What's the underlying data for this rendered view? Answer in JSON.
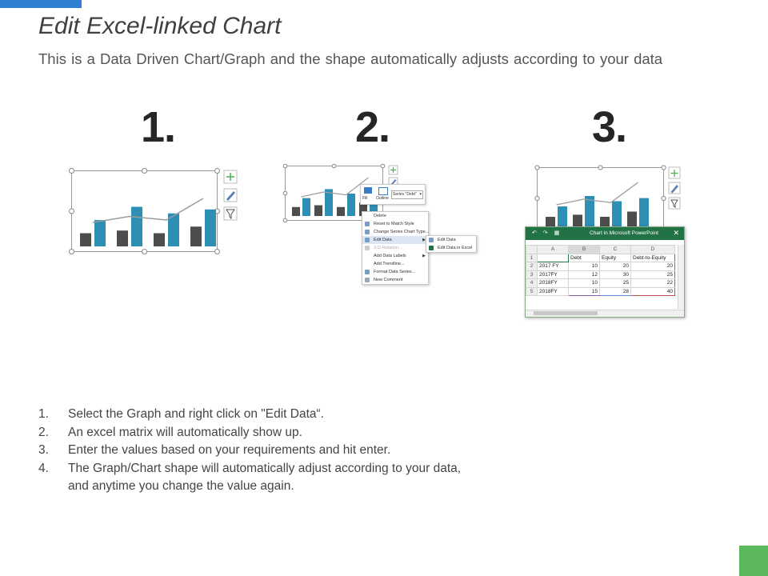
{
  "header": {
    "title": "Edit Excel-linked Chart",
    "subtitle": "This is a Data Driven Chart/Graph and the shape automatically adjusts according to your data"
  },
  "steps": [
    {
      "number": "1."
    },
    {
      "number": "2."
    },
    {
      "number": "3."
    }
  ],
  "colors": {
    "bar_dark": "#4d4d4d",
    "bar_blue": "#2e8fb5",
    "accent_top": "#2f7fd4",
    "accent_corner": "#5cb85c",
    "excel_green": "#217346"
  },
  "chart_data": {
    "type": "bar",
    "categories": [
      "2017 FY",
      "2017FY",
      "2018FY",
      "2018FY"
    ],
    "series": [
      {
        "name": "Debt",
        "values": [
          10,
          12,
          10,
          15
        ]
      },
      {
        "name": "Equity",
        "values": [
          20,
          30,
          25,
          28
        ]
      },
      {
        "name": "Debt-to-Equity",
        "values": [
          20,
          25,
          22,
          40
        ]
      }
    ]
  },
  "context_menu": {
    "mini_toolbar": {
      "fill": "Fill",
      "outline": "Outline",
      "series_select": "Series \"Debt\""
    },
    "items": [
      "Delete",
      "Reset to Match Style",
      "Change Series Chart Type...",
      "Edit Data",
      "3-D Rotation...",
      "Add Data Labels",
      "Add Trendline...",
      "Format Data Series...",
      "New Comment"
    ],
    "submenu": [
      "Edit Data",
      "Edit Data in Excel"
    ]
  },
  "excel": {
    "title": "Chart in Microsoft PowerPoint",
    "close": "✕",
    "quick_access": "↶ ↷ ▦",
    "columns": [
      "A",
      "B",
      "C",
      "D"
    ],
    "headers": [
      "",
      "Debt",
      "Equity",
      "Debt-to-Equity"
    ],
    "rows": [
      {
        "n": "1"
      },
      {
        "n": "2",
        "label": "2017 FY",
        "debt": "10",
        "equity": "20",
        "ratio": "20"
      },
      {
        "n": "3",
        "label": "2017FY",
        "debt": "12",
        "equity": "30",
        "ratio": "25"
      },
      {
        "n": "4",
        "label": "2018FY",
        "debt": "10",
        "equity": "25",
        "ratio": "22"
      },
      {
        "n": "5",
        "label": "2018FY",
        "debt": "15",
        "equity": "28",
        "ratio": "40"
      }
    ]
  },
  "instructions": [
    {
      "n": "1.",
      "text": "Select the Graph and right click on \"Edit Data“."
    },
    {
      "n": "2.",
      "text": "An excel matrix will automatically show up."
    },
    {
      "n": "3.",
      "text": "Enter the values based on your requirements and hit enter."
    },
    {
      "n": "4.",
      "text": "The Graph/Chart shape will automatically adjust according to your data,",
      "cont": "and anytime you change the value again."
    }
  ]
}
